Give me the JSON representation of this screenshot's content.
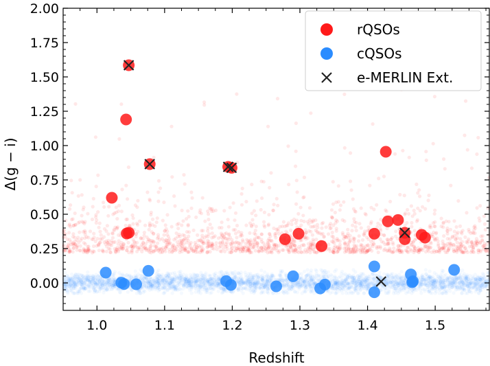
{
  "chart_data": {
    "type": "scatter",
    "title": "",
    "xlabel": "Redshift",
    "ylabel": "Δ(g − i)",
    "xlim": [
      0.95,
      1.58
    ],
    "ylim": [
      -0.2,
      2.0
    ],
    "grid": false,
    "legend_position": "top-right",
    "x_ticks": [
      1.0,
      1.1,
      1.2,
      1.3,
      1.4,
      1.5
    ],
    "x_tick_labels": [
      "1.0",
      "1.1",
      "1.2",
      "1.3",
      "1.4",
      "1.5"
    ],
    "y_ticks": [
      0.0,
      0.25,
      0.5,
      0.75,
      1.0,
      1.25,
      1.5,
      1.75,
      2.0
    ],
    "y_tick_labels": [
      "0.00",
      "0.25",
      "0.50",
      "0.75",
      "1.00",
      "1.25",
      "1.50",
      "1.75",
      "2.00"
    ],
    "colors": {
      "rqso": "#ff1a1a",
      "cqso": "#2b8cff",
      "emerlin": "#222222"
    },
    "background_populations": {
      "red_parent_sample": {
        "description_range_y": [
          0.22,
          1.95
        ],
        "dense_y_range": [
          0.22,
          0.7
        ],
        "n_points": 1600
      },
      "blue_parent_sample": {
        "description_range_y": [
          -0.07,
          0.09
        ],
        "n_points": 3500
      }
    },
    "series": [
      {
        "name": "rQSOs",
        "marker": "circle",
        "x": [
          1.047,
          1.043,
          1.078,
          1.194,
          1.199,
          1.022,
          1.044,
          1.047,
          1.278,
          1.298,
          1.332,
          1.41,
          1.427,
          1.43,
          1.445,
          1.455,
          1.455,
          1.48,
          1.485
        ],
        "y": [
          1.585,
          1.19,
          0.865,
          0.845,
          0.838,
          0.62,
          0.36,
          0.365,
          0.318,
          0.358,
          0.268,
          0.358,
          0.955,
          0.448,
          0.458,
          0.365,
          0.318,
          0.35,
          0.33
        ]
      },
      {
        "name": "cQSOs",
        "marker": "circle",
        "x": [
          1.013,
          1.036,
          1.04,
          1.058,
          1.076,
          1.191,
          1.198,
          1.265,
          1.29,
          1.33,
          1.337,
          1.41,
          1.41,
          1.464,
          1.466,
          1.467,
          1.528
        ],
        "y": [
          0.075,
          0.002,
          -0.008,
          -0.01,
          0.088,
          0.013,
          -0.015,
          -0.025,
          0.048,
          -0.04,
          -0.012,
          0.12,
          -0.068,
          0.062,
          0.005,
          0.012,
          0.095
        ]
      },
      {
        "name": "e-MERLIN Ext.",
        "marker": "x",
        "x": [
          1.047,
          1.078,
          1.194,
          1.199,
          1.42,
          1.455
        ],
        "y": [
          1.585,
          0.865,
          0.845,
          0.838,
          0.01,
          0.365
        ]
      }
    ]
  }
}
